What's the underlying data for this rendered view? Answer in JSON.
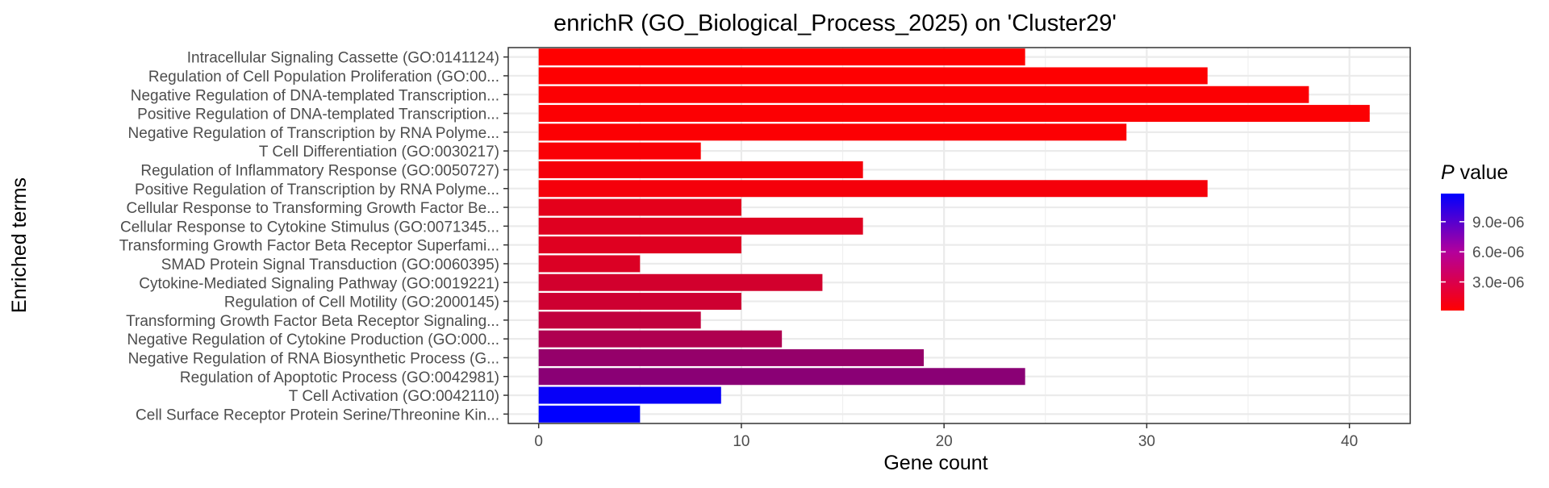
{
  "chart_data": {
    "type": "bar",
    "orientation": "horizontal",
    "title": "enrichR (GO_Biological_Process_2025) on 'Cluster29'",
    "xlabel": "Gene count",
    "ylabel": "Enriched terms",
    "xlim": [
      -1.5,
      43
    ],
    "xticks": [
      0,
      10,
      20,
      30,
      40
    ],
    "grid": true,
    "legend_position": "right",
    "legend": {
      "title_italic": "P",
      "title_rest": " value",
      "ticks": [
        "9.0e-06",
        "6.0e-06",
        "3.0e-06"
      ],
      "tick_values": [
        9e-06,
        6e-06,
        3e-06
      ],
      "range": [
        1.5e-07,
        1.18e-05
      ],
      "color_low": "#ff0000",
      "color_high": "#0000ff"
    },
    "categories": [
      "Intracellular Signaling Cassette (GO:0141124)",
      "Regulation of Cell Population Proliferation (GO:00...",
      "Negative Regulation of DNA-templated Transcription...",
      "Positive Regulation of DNA-templated Transcription...",
      "Negative Regulation of Transcription by RNA Polyme...",
      "T Cell Differentiation (GO:0030217)",
      "Regulation of Inflammatory Response (GO:0050727)",
      "Positive Regulation of Transcription by RNA Polyme...",
      "Cellular Response to Transforming Growth Factor Be...",
      "Cellular Response to Cytokine Stimulus (GO:0071345...",
      "Transforming Growth Factor Beta Receptor Superfami...",
      "SMAD Protein Signal Transduction (GO:0060395)",
      "Cytokine-Mediated Signaling Pathway (GO:0019221)",
      "Regulation of Cell Motility (GO:2000145)",
      "Transforming Growth Factor Beta Receptor Signaling...",
      "Negative Regulation of Cytokine Production (GO:000...",
      "Negative Regulation of RNA Biosynthetic Process (G...",
      "Regulation of Apoptotic Process (GO:0042981)",
      "T Cell Activation (GO:0042110)",
      "Cell Surface Receptor Protein Serine/Threonine Kin..."
    ],
    "values": [
      24,
      33,
      38,
      41,
      29,
      8,
      16,
      33,
      10,
      16,
      10,
      5,
      14,
      10,
      8,
      12,
      19,
      24,
      9,
      5
    ],
    "pvalues": [
      1e-07,
      2e-07,
      3e-07,
      3e-07,
      3e-07,
      4e-07,
      6e-07,
      6e-07,
      1.4e-06,
      1.6e-06,
      1.6e-06,
      1.8e-06,
      2.2e-06,
      2.4e-06,
      3e-06,
      3.8e-06,
      5e-06,
      5.5e-06,
      1.15e-05,
      1.2e-05
    ]
  }
}
